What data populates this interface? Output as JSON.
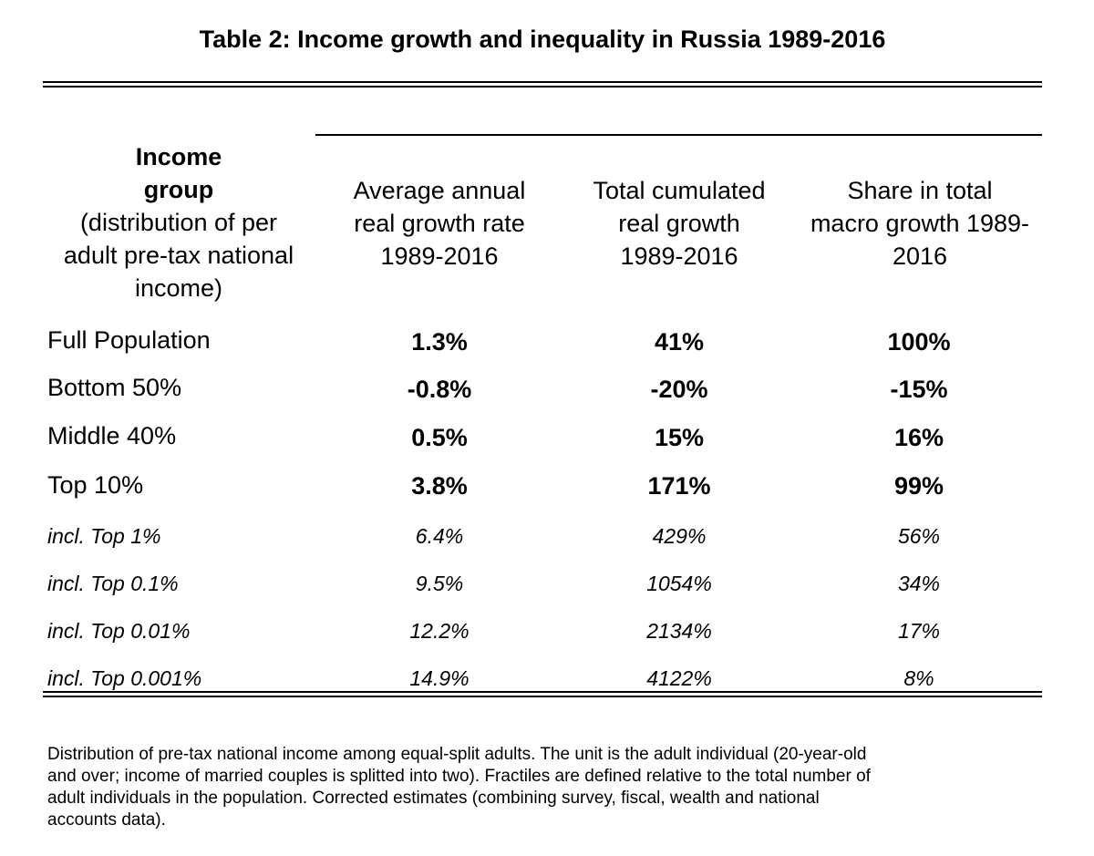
{
  "title": "Table 2: Income growth and inequality in Russia 1989-2016",
  "headers": {
    "group_bold_1": "Income",
    "group_bold_2": "group",
    "group_lines": [
      "(distribution of per",
      "adult pre-tax national",
      "income)"
    ],
    "col1_lines": [
      "Average annual",
      "real growth rate",
      "1989-2016"
    ],
    "col2_lines": [
      "Total cumulated",
      "real growth",
      "1989-2016"
    ],
    "col3_lines": [
      "Share in total",
      "macro growth 1989-",
      "2016"
    ]
  },
  "rows": [
    {
      "group": "Full Population",
      "avg_growth": "1.3%",
      "total_growth": "41%",
      "share": "100%"
    },
    {
      "group": "Bottom 50%",
      "avg_growth": "-0.8%",
      "total_growth": "-20%",
      "share": "-15%"
    },
    {
      "group": "Middle 40%",
      "avg_growth": "0.5%",
      "total_growth": "15%",
      "share": "16%"
    },
    {
      "group": "Top 10%",
      "avg_growth": "3.8%",
      "total_growth": "171%",
      "share": "99%"
    },
    {
      "group": "incl. Top 1%",
      "avg_growth": "6.4%",
      "total_growth": "429%",
      "share": "56%"
    },
    {
      "group": "incl. Top 0.1%",
      "avg_growth": "9.5%",
      "total_growth": "1054%",
      "share": "34%"
    },
    {
      "group": "incl. Top 0.01%",
      "avg_growth": "12.2%",
      "total_growth": "2134%",
      "share": "17%"
    },
    {
      "group": "incl. Top 0.001%",
      "avg_growth": "14.9%",
      "total_growth": "4122%",
      "share": "8%"
    }
  ],
  "note_lines": [
    "Distribution of pre-tax national income among equal-split adults. The unit is the adult individual (20-year-old",
    "and over; income of married couples is splitted into two). Fractiles are defined relative to the total number of",
    "adult individuals in the population. Corrected estimates (combining survey, fiscal, wealth and national",
    "accounts data)."
  ]
}
